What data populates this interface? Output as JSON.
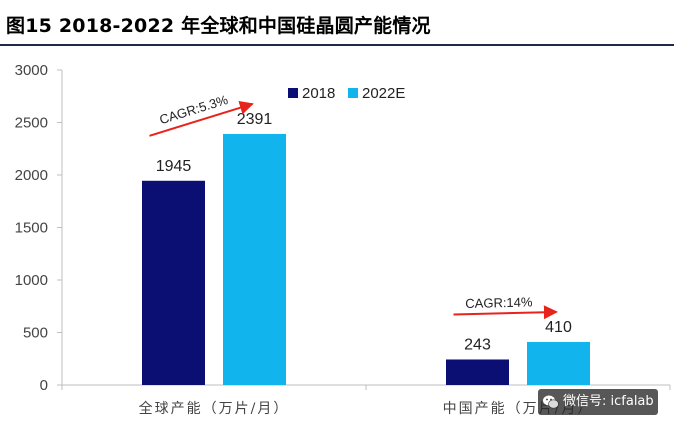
{
  "title": "图15 2018-2022 年全球和中国硅晶圆产能情况",
  "colors": {
    "series_2018": "#0b0f73",
    "series_2022E": "#12b4ee",
    "arrow": "#e8231c",
    "axis_text": "#444444"
  },
  "chart_data": {
    "type": "bar",
    "categories": [
      "全球产能（万片/月）",
      "中国产能（万片/月）"
    ],
    "series": [
      {
        "name": "2018",
        "values": [
          1945,
          243
        ]
      },
      {
        "name": "2022E",
        "values": [
          2391,
          410
        ]
      }
    ],
    "data_labels": [
      [
        "1945",
        "243"
      ],
      [
        "2391",
        "410"
      ]
    ],
    "y_ticks": [
      0,
      500,
      1000,
      1500,
      2000,
      2500,
      3000
    ],
    "ylim": [
      0,
      3000
    ],
    "annotations": [
      "CAGR:5.3%",
      "CAGR:14%"
    ],
    "legend": "top-right",
    "grid": false
  },
  "watermark": {
    "icon": "wechat-icon",
    "text": "微信号: icfalab"
  }
}
